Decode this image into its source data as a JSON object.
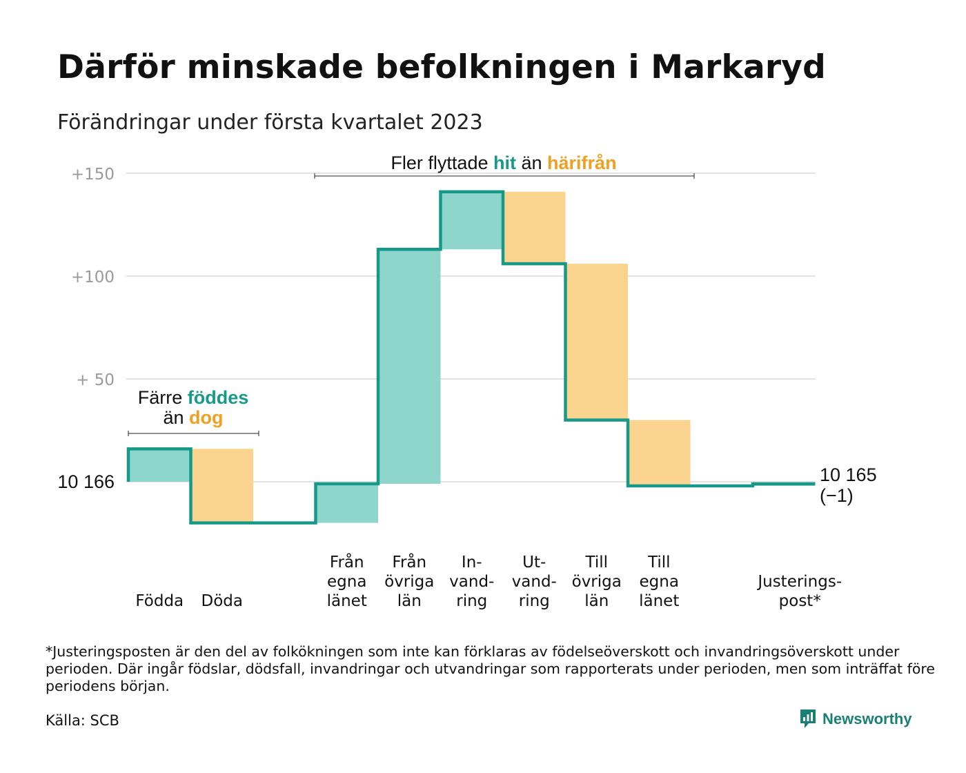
{
  "title": "Därför minskade befolkningen i Markaryd",
  "subtitle": "Förändringar under första kvartalet 2023",
  "colors": {
    "inflow": "#8ed6cc",
    "outflow": "#fad48e",
    "line": "#17998a",
    "teal_text": "#17998a",
    "orange_text": "#f0a021",
    "grid": "#e2e2e2"
  },
  "annotations": {
    "births": {
      "line1_pre": "Färre ",
      "line1_hl": "föddes",
      "line2_pre": "än ",
      "line2_hl": "dog"
    },
    "migration": {
      "pre": "Fler flyttade ",
      "hl1": "hit",
      "mid": " än ",
      "hl2": "härifrån"
    }
  },
  "chart_data": {
    "type": "waterfall",
    "base_population": 10166,
    "y_ticks": [
      {
        "value": 150,
        "label": "+150"
      },
      {
        "value": 100,
        "label": "+100"
      },
      {
        "value": 50,
        "label": "+ 50"
      },
      {
        "value": 0,
        "label": "10 166"
      }
    ],
    "ylim": [
      -25,
      150
    ],
    "steps": [
      {
        "label": [
          "Födda"
        ],
        "from": 0,
        "to": 16,
        "kind": "inflow"
      },
      {
        "label": [
          "Döda"
        ],
        "from": 16,
        "to": -20,
        "kind": "outflow"
      },
      {
        "label": [],
        "from": -20,
        "to": -20,
        "kind": "none"
      },
      {
        "label": [
          "Från",
          "egna",
          "länet"
        ],
        "from": -20,
        "to": -1,
        "kind": "inflow"
      },
      {
        "label": [
          "Från",
          "övriga",
          "län"
        ],
        "from": -1,
        "to": 113,
        "kind": "inflow"
      },
      {
        "label": [
          "In-",
          "vand-",
          "ring"
        ],
        "from": 113,
        "to": 141,
        "kind": "inflow"
      },
      {
        "label": [
          "Ut-",
          "vand-",
          "ring"
        ],
        "from": 141,
        "to": 106,
        "kind": "outflow"
      },
      {
        "label": [
          "Till",
          "övriga",
          "län"
        ],
        "from": 106,
        "to": 30,
        "kind": "outflow"
      },
      {
        "label": [
          "Till",
          "egna",
          "länet"
        ],
        "from": 30,
        "to": -2,
        "kind": "outflow"
      },
      {
        "label": [],
        "from": -2,
        "to": -2,
        "kind": "none"
      },
      {
        "label": [
          "Justerings-",
          "post*"
        ],
        "from": -2,
        "to": -1,
        "kind": "inflow"
      }
    ],
    "end_label": [
      "10 165",
      "(−1)"
    ],
    "end_value": 10165,
    "change": -1
  },
  "footnote": "*Justeringsposten är den del av folkökningen som inte kan förklaras av födelseöverskott och invandringsöverskott under perioden. Där ingår födslar, dödsfall, invandringar och utvandringar som rapporterats under perioden, men som inträffat före periodens början.",
  "source": "Källa: SCB",
  "brand": "Newsworthy"
}
